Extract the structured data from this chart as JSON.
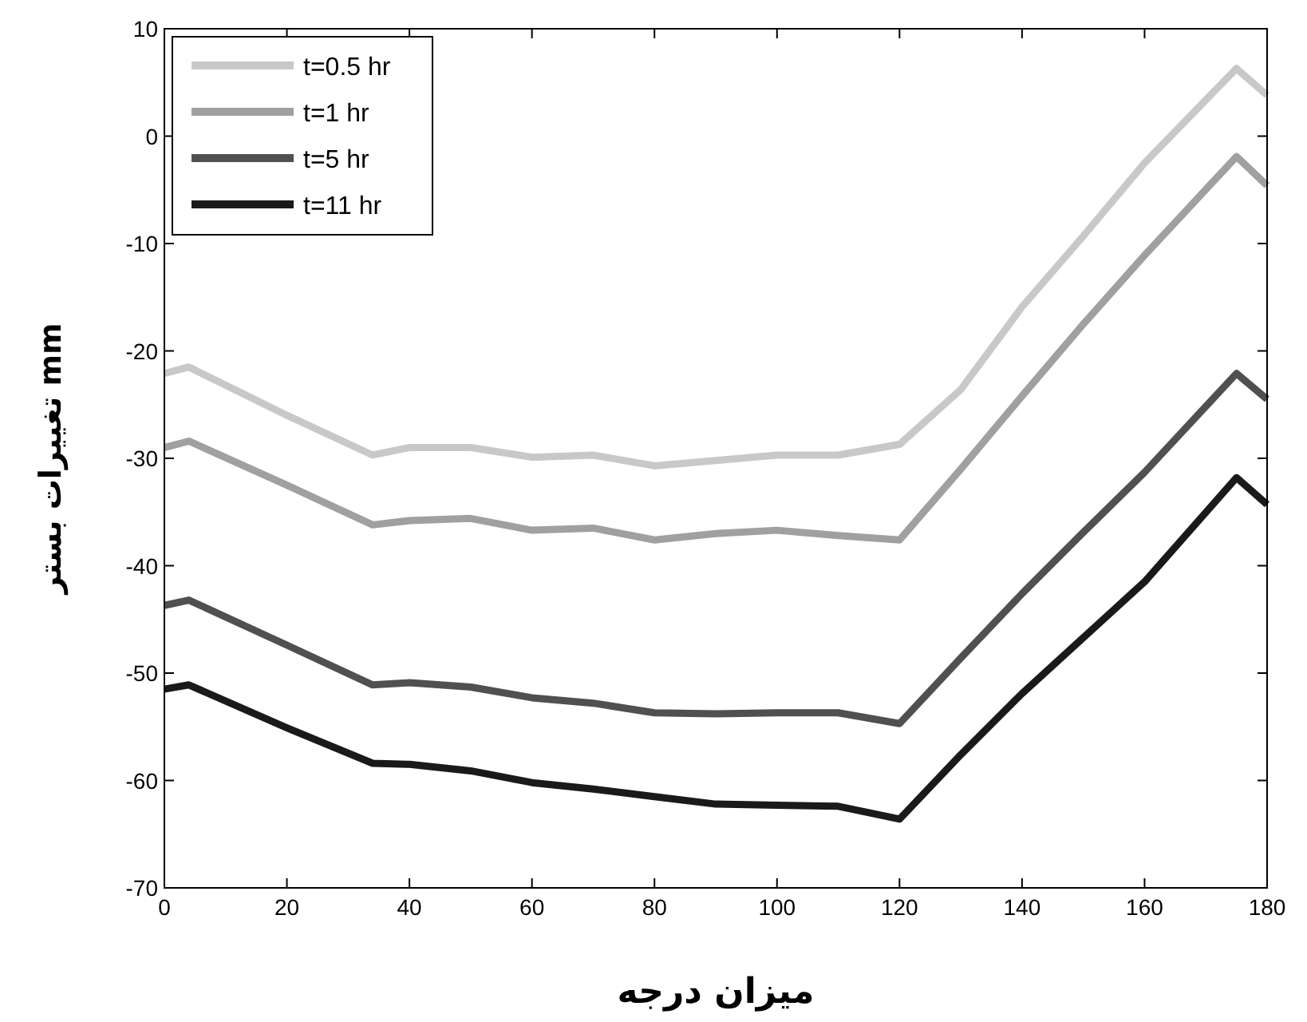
{
  "chart_data": {
    "type": "line",
    "xlabel": "میزان درجه",
    "ylabel": "تغییرات بستر mm",
    "x": [
      0,
      4,
      20,
      34,
      40,
      50,
      60,
      70,
      80,
      90,
      100,
      110,
      120,
      130,
      140,
      150,
      160,
      175,
      180
    ],
    "series": [
      {
        "name": "t=0.5 hr",
        "color": "#c8c8c8",
        "values": [
          -22.1,
          -21.5,
          -26,
          -29.7,
          -29,
          -29,
          -29.9,
          -29.7,
          -30.7,
          -30.2,
          -29.7,
          -29.7,
          -28.7,
          -23.6,
          -15.9,
          -9.3,
          -2.5,
          6.3,
          3.8
        ]
      },
      {
        "name": "t=1 hr",
        "color": "#a0a0a0",
        "values": [
          -29,
          -28.4,
          -32.5,
          -36.2,
          -35.8,
          -35.6,
          -36.7,
          -36.5,
          -37.6,
          -37,
          -36.7,
          -37.2,
          -37.6,
          -31,
          -24.2,
          -17.5,
          -11.1,
          -1.9,
          -4.6
        ]
      },
      {
        "name": "t=5 hr",
        "color": "#505050",
        "values": [
          -43.7,
          -43.2,
          -47.4,
          -51.1,
          -50.9,
          -51.3,
          -52.3,
          -52.8,
          -53.7,
          -53.8,
          -53.7,
          -53.7,
          -54.7,
          -48.6,
          -42.6,
          -36.9,
          -31.3,
          -22.1,
          -24.5
        ]
      },
      {
        "name": "t=11 hr",
        "color": "#1a1a1a",
        "values": [
          -51.5,
          -51.1,
          -55.1,
          -58.4,
          -58.5,
          -59.1,
          -60.2,
          -60.8,
          -61.5,
          -62.2,
          -62.3,
          -62.4,
          -63.6,
          -57.6,
          -51.9,
          -46.7,
          -41.5,
          -31.8,
          -34.3
        ]
      }
    ],
    "xlim": [
      0,
      180
    ],
    "ylim": [
      -70,
      10
    ],
    "xticks": [
      0,
      20,
      40,
      60,
      80,
      100,
      120,
      140,
      160,
      180
    ],
    "yticks": [
      -70,
      -60,
      -50,
      -40,
      -30,
      -20,
      -10,
      0,
      10
    ],
    "legend": "top left"
  }
}
